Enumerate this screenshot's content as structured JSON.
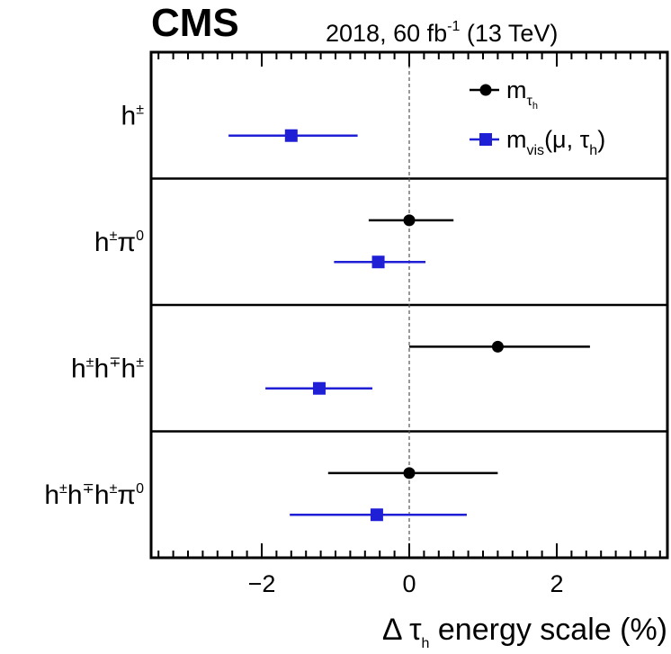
{
  "header": {
    "experiment": "CMS",
    "lumi_main": "2018, 60 fb",
    "lumi_sup": "-1",
    "lumi_energy": " (13 TeV)"
  },
  "xaxis": {
    "prefix": "Δ τ",
    "sub": "h",
    "suffix": " energy scale (%)"
  },
  "legend": [
    {
      "key": "m_tau_h",
      "base": "m",
      "sub": "τ",
      "subsub": "h",
      "marker": "circle",
      "color": "#000000"
    },
    {
      "key": "m_vis",
      "base": "m",
      "sub": "vis",
      "rest": "(μ, τ",
      "rest_sub": "h",
      "rest_end": ")",
      "marker": "square",
      "color": "#1f1fd6"
    }
  ],
  "chart_data": {
    "type": "scatter",
    "orientation": "horizontal-error-bars",
    "xlim": [
      -3.5,
      3.5
    ],
    "x_ticks": [
      -2,
      0,
      2
    ],
    "x_tick_labels": [
      "−2",
      "0",
      "2"
    ],
    "reference_line_x": 0,
    "categories": [
      {
        "label_parts": [
          [
            "h",
            ""
          ],
          [
            "±",
            "sup"
          ]
        ]
      },
      {
        "label_parts": [
          [
            "h",
            ""
          ],
          [
            "±",
            "sup"
          ],
          [
            "π",
            ""
          ],
          [
            "0",
            "sup"
          ]
        ]
      },
      {
        "label_parts": [
          [
            "h",
            ""
          ],
          [
            "±",
            "sup"
          ],
          [
            "h",
            ""
          ],
          [
            "∓",
            "sup"
          ],
          [
            "h",
            ""
          ],
          [
            "±",
            "sup"
          ]
        ]
      },
      {
        "label_parts": [
          [
            "h",
            ""
          ],
          [
            "±",
            "sup"
          ],
          [
            "h",
            ""
          ],
          [
            "∓",
            "sup"
          ],
          [
            "h",
            ""
          ],
          [
            "±",
            "sup"
          ],
          [
            "π",
            ""
          ],
          [
            "0",
            "sup"
          ]
        ]
      }
    ],
    "series": [
      {
        "name": "m_tau_h",
        "color": "#000000",
        "marker": "circle",
        "points": [
          null,
          {
            "value": 0.0,
            "low": -0.55,
            "high": 0.6
          },
          {
            "value": 1.2,
            "low": 0.0,
            "high": 2.45
          },
          {
            "value": 0.0,
            "low": -1.1,
            "high": 1.2
          }
        ]
      },
      {
        "name": "m_vis",
        "color": "#1f1fd6",
        "marker": "square",
        "points": [
          {
            "value": -1.6,
            "low": -2.45,
            "high": -0.7
          },
          {
            "value": -0.42,
            "low": -1.02,
            "high": 0.22
          },
          {
            "value": -1.22,
            "low": -1.95,
            "high": -0.5
          },
          {
            "value": -0.44,
            "low": -1.62,
            "high": 0.78
          }
        ]
      }
    ]
  }
}
